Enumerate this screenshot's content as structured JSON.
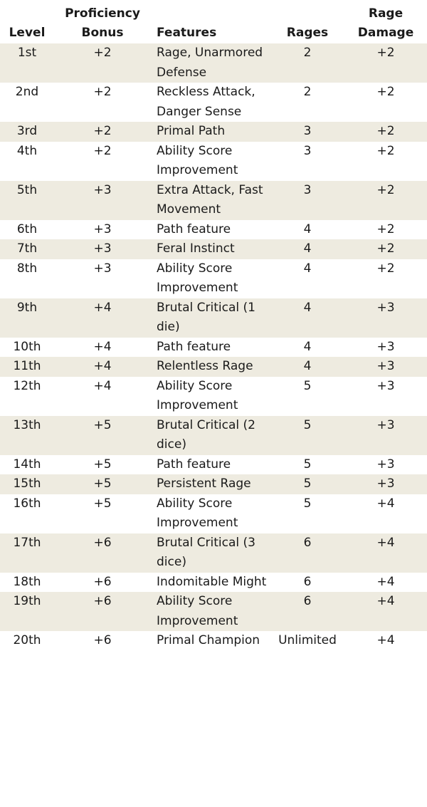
{
  "headers": {
    "level": "Level",
    "proficiency_bonus": "Proficiency Bonus",
    "features": "Features",
    "rages": "Rages",
    "rage_damage": "Rage Damage"
  },
  "rows": [
    {
      "level": "1st",
      "prof": "+2",
      "features": "Rage, Unarmored Defense",
      "rages": "2",
      "damage": "+2"
    },
    {
      "level": "2nd",
      "prof": "+2",
      "features": "Reckless Attack, Danger Sense",
      "rages": "2",
      "damage": "+2"
    },
    {
      "level": "3rd",
      "prof": "+2",
      "features": "Primal Path",
      "rages": "3",
      "damage": "+2"
    },
    {
      "level": "4th",
      "prof": "+2",
      "features": "Ability Score Improvement",
      "rages": "3",
      "damage": "+2"
    },
    {
      "level": "5th",
      "prof": "+3",
      "features": "Extra Attack, Fast Movement",
      "rages": "3",
      "damage": "+2"
    },
    {
      "level": "6th",
      "prof": "+3",
      "features": "Path feature",
      "rages": "4",
      "damage": "+2"
    },
    {
      "level": "7th",
      "prof": "+3",
      "features": "Feral Instinct",
      "rages": "4",
      "damage": "+2"
    },
    {
      "level": "8th",
      "prof": "+3",
      "features": "Ability Score Improvement",
      "rages": "4",
      "damage": "+2"
    },
    {
      "level": "9th",
      "prof": "+4",
      "features": "Brutal Critical (1 die)",
      "rages": "4",
      "damage": "+3"
    },
    {
      "level": "10th",
      "prof": "+4",
      "features": "Path feature",
      "rages": "4",
      "damage": "+3"
    },
    {
      "level": "11th",
      "prof": "+4",
      "features": "Relentless Rage",
      "rages": "4",
      "damage": "+3"
    },
    {
      "level": "12th",
      "prof": "+4",
      "features": "Ability Score Improvement",
      "rages": "5",
      "damage": "+3"
    },
    {
      "level": "13th",
      "prof": "+5",
      "features": "Brutal Critical (2 dice)",
      "rages": "5",
      "damage": "+3"
    },
    {
      "level": "14th",
      "prof": "+5",
      "features": "Path feature",
      "rages": "5",
      "damage": "+3"
    },
    {
      "level": "15th",
      "prof": "+5",
      "features": "Persistent Rage",
      "rages": "5",
      "damage": "+3"
    },
    {
      "level": "16th",
      "prof": "+5",
      "features": "Ability Score Improvement",
      "rages": "5",
      "damage": "+4"
    },
    {
      "level": "17th",
      "prof": "+6",
      "features": "Brutal Critical (3 dice)",
      "rages": "6",
      "damage": "+4"
    },
    {
      "level": "18th",
      "prof": "+6",
      "features": "Indomitable Might",
      "rages": "6",
      "damage": "+4"
    },
    {
      "level": "19th",
      "prof": "+6",
      "features": "Ability Score Improvement",
      "rages": "6",
      "damage": "+4"
    },
    {
      "level": "20th",
      "prof": "+6",
      "features": "Primal Champion",
      "rages": "Unlimited",
      "damage": "+4"
    }
  ],
  "colors": {
    "stripe": "#eeebe0",
    "text": "#1a1a1a"
  }
}
